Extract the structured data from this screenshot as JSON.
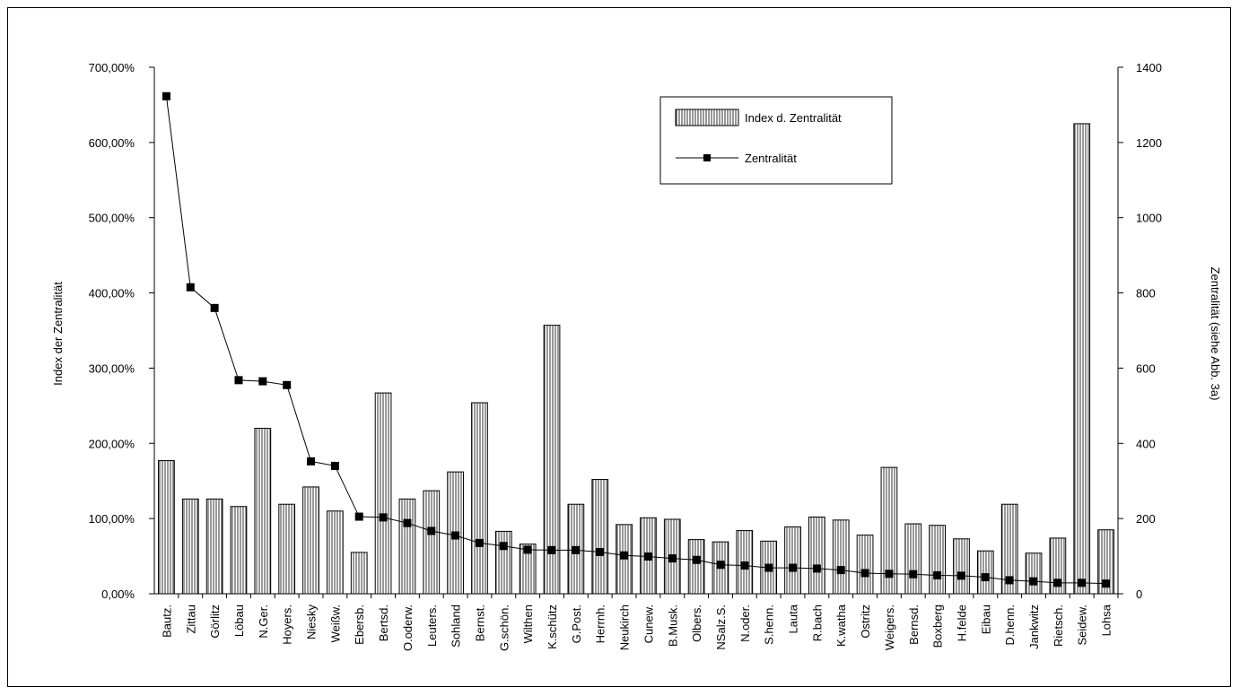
{
  "chart_data": {
    "type": "bar",
    "categories": [
      "Bautz.",
      "Zittau",
      "Görlitz",
      "Löbau",
      "N.Ger.",
      "Hoyers.",
      "Niesky",
      "Weißw.",
      "Ebersb.",
      "Bertsd.",
      "O.oderw.",
      "Leuters.",
      "Sohland",
      "Bernst.",
      "G.schön.",
      "Wilthen",
      "K.schütz",
      "G.Post.",
      "Herrnh.",
      "Neukirch",
      "Cunew.",
      "B.Musk.",
      "Olbers.",
      "NSalz.S.",
      "N.oder.",
      "S.henn.",
      "Lauta",
      "R.bach",
      "K.watha",
      "Ostritz",
      "Weigers.",
      "Bernsd.",
      "Boxberg",
      "H.felde",
      "Eibau",
      "D.henn.",
      "Jankwitz",
      "Rietsch.",
      "Seidew.",
      "Lohsa"
    ],
    "series": [
      {
        "name": "Index d. Zentralität",
        "type": "bar",
        "axis": "left",
        "values": [
          177,
          126,
          126,
          116,
          220,
          119,
          142,
          110,
          55,
          267,
          126,
          137,
          162,
          254,
          83,
          66,
          357,
          119,
          152,
          92,
          101,
          99,
          72,
          69,
          84,
          70,
          89,
          102,
          98,
          78,
          168,
          93,
          91,
          73,
          57,
          119,
          54,
          74,
          625,
          85
        ]
      },
      {
        "name": "Zentralität",
        "type": "line",
        "axis": "right",
        "values": [
          1323,
          815,
          760,
          568,
          565,
          555,
          352,
          340,
          205,
          203,
          188,
          167,
          155,
          135,
          127,
          117,
          116,
          116,
          111,
          102,
          99,
          94,
          90,
          77,
          75,
          69,
          69,
          67,
          63,
          55,
          53,
          52,
          49,
          48,
          44,
          36,
          33,
          29,
          29,
          27
        ]
      }
    ],
    "ylabel": "Index der Zentralität",
    "y2label": "Zentralität (siehe Abb. 3a)",
    "ylim": [
      0,
      700
    ],
    "y2lim": [
      0,
      1400
    ],
    "yticks": [
      "0,00%",
      "100,00%",
      "200,00%",
      "300,00%",
      "400,00%",
      "500,00%",
      "600,00%",
      "700,00%"
    ],
    "y2ticks": [
      "0",
      "200",
      "400",
      "600",
      "800",
      "1000",
      "1200",
      "1400"
    ],
    "legend_position": "top-right",
    "grid": false
  }
}
